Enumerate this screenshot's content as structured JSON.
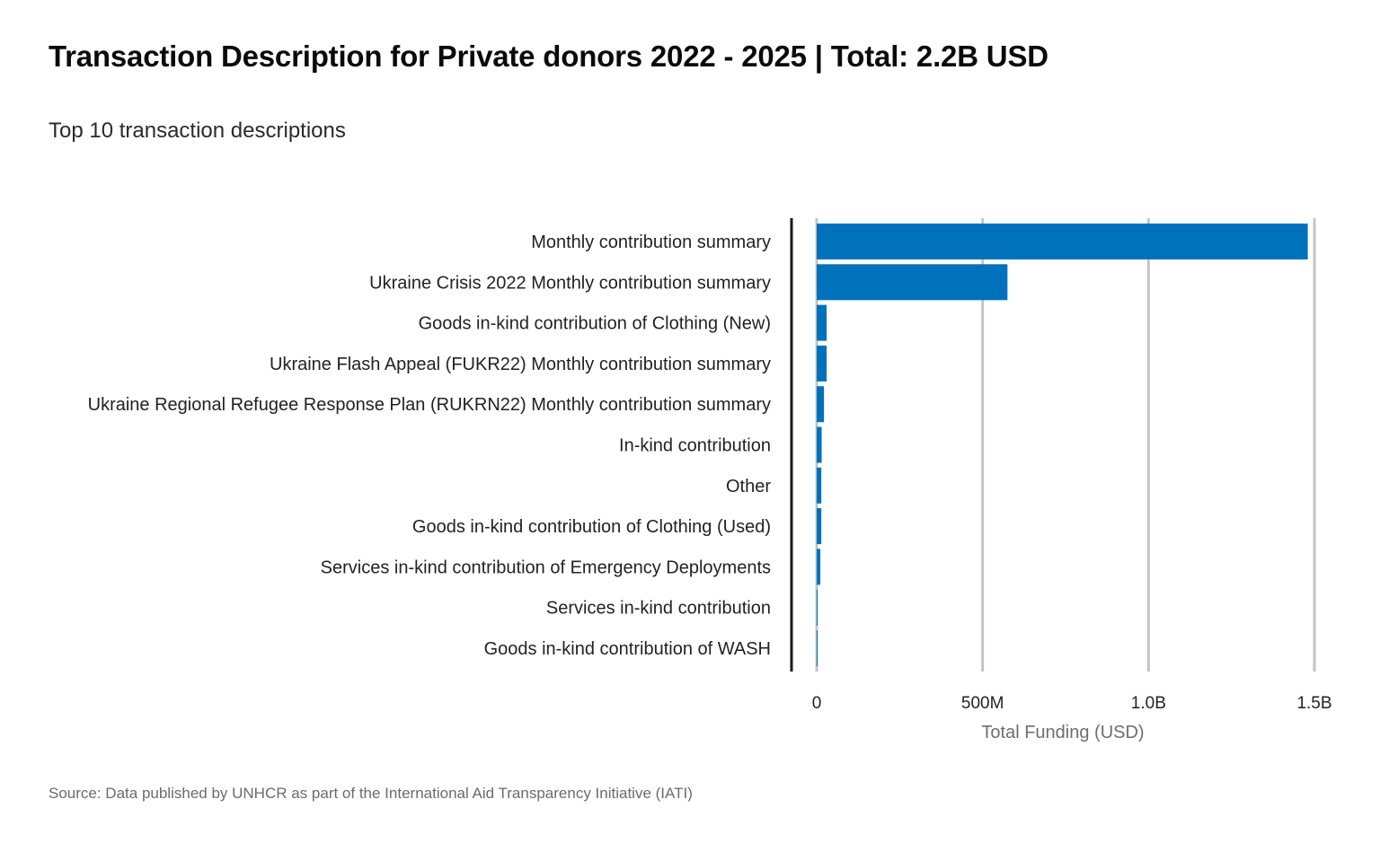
{
  "title": "Transaction Description  for Private  donors 2022 - 2025 | Total: 2.2B USD",
  "subtitle": "Top 10  transaction descriptions",
  "source": "Source: Data published by UNHCR as part of the International Aid Transparency Initiative (IATI)",
  "colors": {
    "bar": "#0072bc",
    "grid": "#c4c4c4",
    "baseline": "#1a1a1a"
  },
  "chart_data": {
    "type": "bar",
    "orientation": "horizontal",
    "title": "Transaction Description  for Private  donors 2022 - 2025 | Total: 2.2B USD",
    "subtitle": "Top 10  transaction descriptions",
    "xlabel": "Total Funding (USD)",
    "ylabel": "",
    "xlim": [
      0,
      1500000000
    ],
    "xticks": [
      0,
      500000000,
      1000000000,
      1500000000
    ],
    "xtick_labels": [
      "0",
      "500M",
      "1.0B",
      "1.5B"
    ],
    "grid": true,
    "categories": [
      "Monthly contribution summary",
      "Ukraine Crisis 2022 Monthly contribution summary",
      "Goods in-kind contribution of Clothing (New)",
      "Ukraine Flash Appeal (FUKR22) Monthly contribution summary",
      "Ukraine Regional Refugee Response Plan (RUKRN22) Monthly contribution summary",
      "In-kind contribution",
      "Other",
      "Goods in-kind contribution of Clothing (Used)",
      "Services in-kind contribution of Emergency Deployments",
      "Services in-kind contribution",
      "Goods in-kind contribution of WASH"
    ],
    "values": [
      1480000000,
      575000000,
      30000000,
      30000000,
      22000000,
      15000000,
      14000000,
      14000000,
      11000000,
      2000000,
      1500000
    ]
  }
}
